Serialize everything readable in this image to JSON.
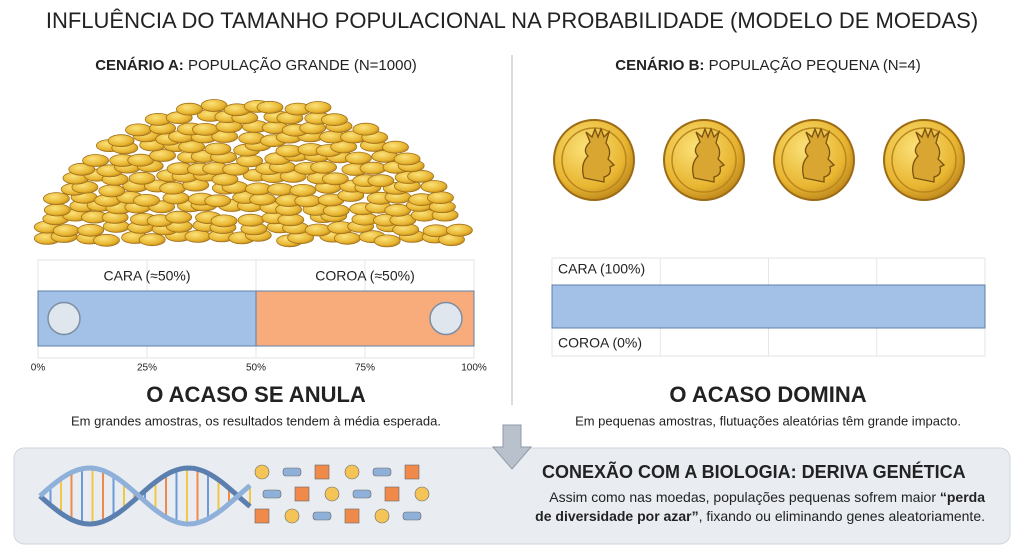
{
  "title": "INFLUÊNCIA DO TAMANHO POPULACIONAL NA PROBABILIDADE (MODELO DE MOEDAS)",
  "scenario_a": {
    "label_bold": "CENÁRIO A:",
    "label": "POPULAÇÃO GRANDE (N=1000)",
    "xlim": [
      0,
      100
    ],
    "xticks": [
      {
        "value": 0,
        "label": "0%"
      },
      {
        "value": 25,
        "label": "25%"
      },
      {
        "value": 50,
        "label": "50%"
      },
      {
        "value": 75,
        "label": "75%"
      },
      {
        "value": 100,
        "label": "100%"
      }
    ],
    "segments": [
      {
        "label": "CARA (≈50%)",
        "value": 50,
        "color": "#a3c1e6"
      },
      {
        "label": "COROA (≈50%)",
        "value": 50,
        "color": "#f8ab7b"
      }
    ],
    "heading": "O ACASO SE ANULA",
    "caption": "Em grandes amostras, os resultados tendem à média esperada."
  },
  "scenario_b": {
    "label_bold": "CENÁRIO B:",
    "label": "POPULAÇÃO PEQUENA (N=4)",
    "xlim": [
      0,
      100
    ],
    "xticks": [
      0,
      25,
      50,
      75,
      100
    ],
    "segments": [
      {
        "label": "CARA (100%)",
        "value": 100,
        "color": "#a3c1e6"
      },
      {
        "label": "COROA (0%)",
        "value": 0,
        "color": "#f8ab7b"
      }
    ],
    "heading": "O ACASO DOMINA",
    "caption": "Em pequenas amostras, flutuações aleatórias têm grande impacto."
  },
  "footer": {
    "title": "CONEXÃO COM A BIOLOGIA: DERIVA GENÉTICA",
    "lines": [
      [
        {
          "text": "Assim como nas moedas, populações pequenas sofrem maior "
        },
        {
          "text": "“perda",
          "bold": true
        }
      ],
      [
        {
          "text": "de diversidade por azar”",
          "bold": true
        },
        {
          "text": ", fixando ou eliminando genes aleatoriamente."
        }
      ]
    ]
  }
}
